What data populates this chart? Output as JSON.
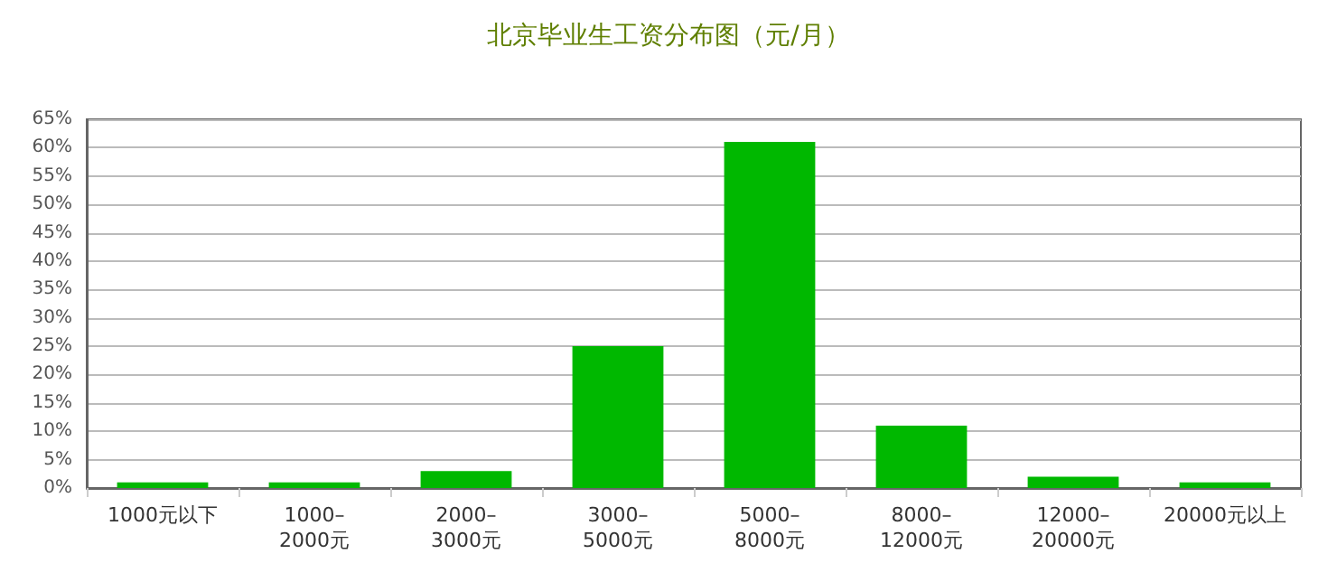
{
  "chart_data": {
    "type": "bar",
    "title": "北京毕业生工资分布图（元/月）",
    "categories": [
      "1000元以下",
      "1000–\n2000元",
      "2000–\n3000元",
      "3000–\n5000元",
      "5000–\n8000元",
      "8000–\n12000元",
      "12000–\n20000元",
      "20000元以上"
    ],
    "values": [
      1,
      1,
      3,
      25,
      61,
      11,
      2,
      1
    ],
    "color": "#00b800",
    "ylim": [
      0,
      65
    ],
    "yticks": [
      {
        "value": 0,
        "label": "0%"
      },
      {
        "value": 5,
        "label": "5%"
      },
      {
        "value": 10,
        "label": "10%"
      },
      {
        "value": 15,
        "label": "15%"
      },
      {
        "value": 20,
        "label": "20%"
      },
      {
        "value": 25,
        "label": "25%"
      },
      {
        "value": 30,
        "label": "30%"
      },
      {
        "value": 35,
        "label": "35%"
      },
      {
        "value": 40,
        "label": "40%"
      },
      {
        "value": 45,
        "label": "45%"
      },
      {
        "value": 50,
        "label": "50%"
      },
      {
        "value": 55,
        "label": "55%"
      },
      {
        "value": 60,
        "label": "60%"
      },
      {
        "value": 65,
        "label": "65%"
      }
    ],
    "grid": "y"
  }
}
